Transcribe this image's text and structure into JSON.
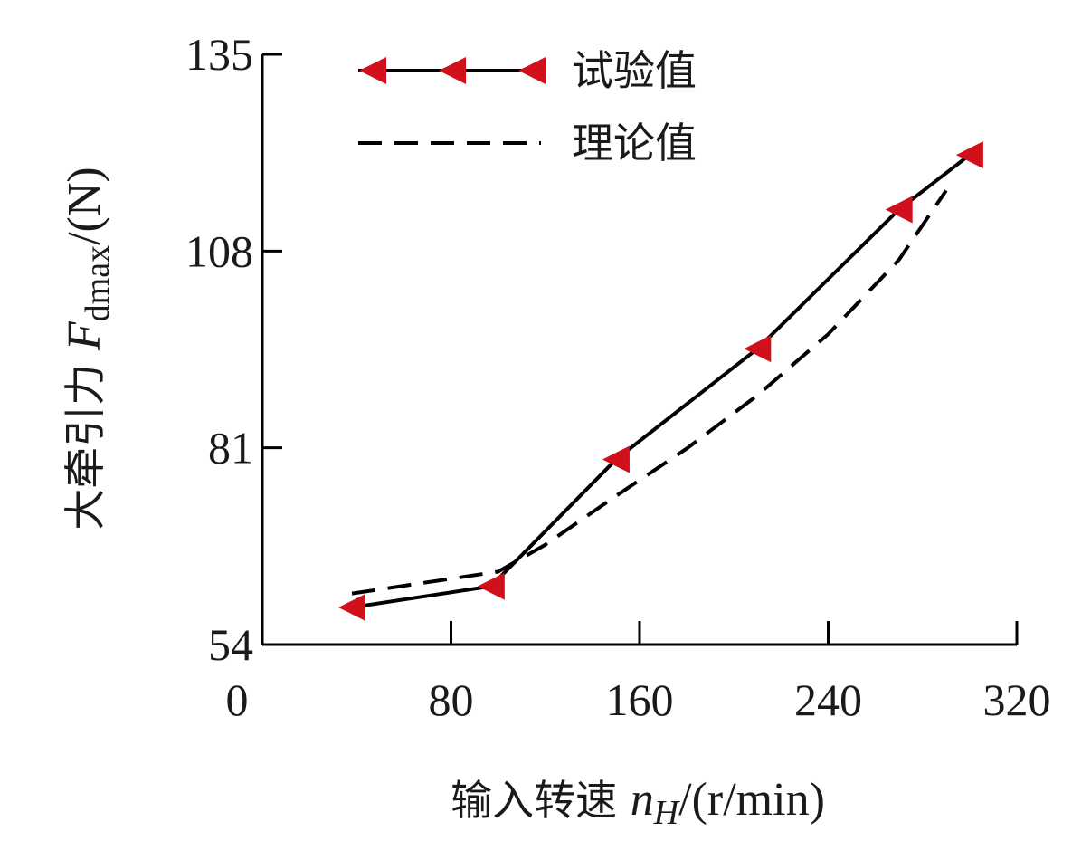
{
  "chart_data": {
    "type": "line",
    "title": "",
    "xlabel": {
      "prefix": "输入转速 ",
      "symbol": "n",
      "subscript": "H",
      "unit": "/(r/min)"
    },
    "ylabel": {
      "prefix": "大牵引力 ",
      "symbol": "F",
      "subscript": "dmax",
      "unit": "/(N)"
    },
    "xlim": [
      0,
      320
    ],
    "ylim": [
      54,
      135
    ],
    "x_ticks": [
      0,
      80,
      160,
      240,
      320
    ],
    "y_ticks": [
      54,
      81,
      108,
      135
    ],
    "x_tick_labels": [
      "0",
      "80",
      "160",
      "240",
      "320"
    ],
    "y_tick_labels": [
      "54",
      "81",
      "108",
      "135"
    ],
    "legend_position": "top-left",
    "series": [
      {
        "name": "试验值",
        "style": "solid",
        "marker": "triangle-left",
        "color": "#000000",
        "marker_color": "#d0101a",
        "x": [
          38,
          97,
          150,
          210,
          270,
          300
        ],
        "y": [
          59.1,
          62.0,
          79.4,
          94.6,
          113.7,
          121.2
        ]
      },
      {
        "name": "理论值",
        "style": "dashed",
        "color": "#000000",
        "x": [
          38,
          100,
          120,
          150,
          180,
          210,
          240,
          270,
          290
        ],
        "y": [
          61.0,
          64.0,
          67.7,
          74.4,
          80.9,
          88.2,
          96.6,
          106.8,
          116.3
        ]
      }
    ]
  }
}
